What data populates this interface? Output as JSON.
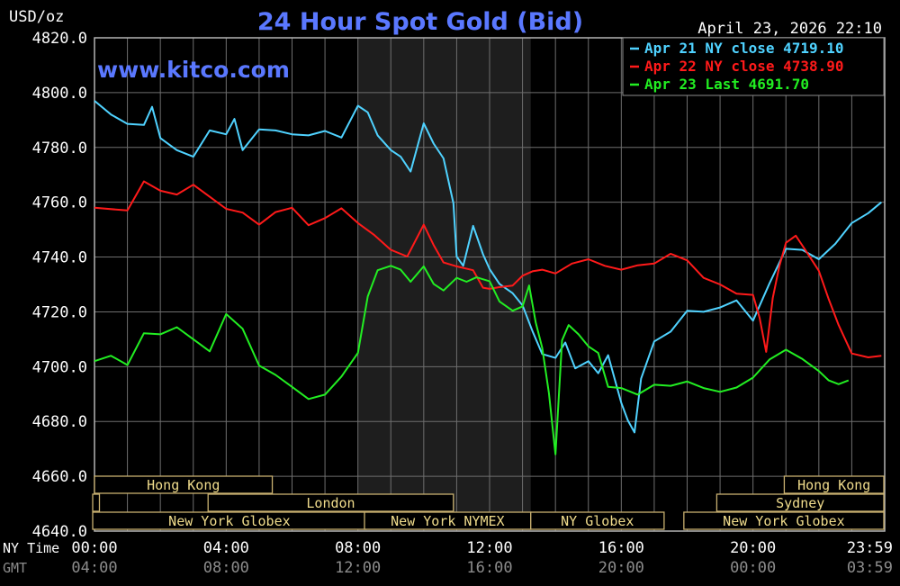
{
  "chart_data": {
    "type": "line",
    "title": "24 Hour Spot Gold (Bid)",
    "watermark": "www.kitco.com",
    "timestamp": "April 23, 2026 22:10",
    "ylabel": "USD/oz",
    "ylim": [
      4640,
      4820
    ],
    "yticks": [
      4820,
      4800,
      4780,
      4760,
      4740,
      4720,
      4700,
      4680,
      4660,
      4640
    ],
    "ytick_labels": [
      "4820.0",
      "4800.0",
      "4780.0",
      "4760.0",
      "4740.0",
      "4720.0",
      "4700.0",
      "4680.0",
      "4660.0",
      "4640.0"
    ],
    "xlim": [
      0,
      24
    ],
    "grid": true,
    "legend_position": "top-right",
    "x_axis_rows": [
      {
        "label": "NY Time",
        "color": "#ffffff",
        "ticks": [
          "00:00",
          "04:00",
          "08:00",
          "12:00",
          "16:00",
          "20:00",
          "23:59"
        ]
      },
      {
        "label": "GMT",
        "color": "#8c8c8c",
        "ticks": [
          "04:00",
          "08:00",
          "12:00",
          "16:00",
          "20:00",
          "00:00",
          "03:59"
        ]
      }
    ],
    "x_tick_positions": [
      0,
      4,
      8,
      12,
      16,
      20,
      23.98
    ],
    "shaded_region": [
      8,
      13.25
    ],
    "series": [
      {
        "name": "Apr 21 NY close 4719.10",
        "color": "#4fd2ff",
        "x": [
          0,
          0.5,
          1,
          1.5,
          1.75,
          2,
          2.5,
          3,
          3.5,
          4,
          4.25,
          4.5,
          5,
          5.5,
          6,
          6.5,
          7,
          7.5,
          8,
          8.3,
          8.6,
          9,
          9.3,
          9.6,
          10,
          10.3,
          10.6,
          10.9,
          11,
          11.2,
          11.5,
          11.8,
          12,
          12.3,
          12.7,
          13,
          13.3,
          13.6,
          14,
          14.3,
          14.6,
          15,
          15.3,
          15.6,
          16,
          16.2,
          16.4,
          16.6,
          17,
          17.5,
          18,
          18.5,
          19,
          19.5,
          20,
          20.5,
          21,
          21.5,
          22,
          22.5,
          23,
          23.5,
          23.9
        ],
        "y": [
          4797,
          4792,
          4789,
          4788,
          4795,
          4783,
          4779,
          4777,
          4786,
          4785,
          4790,
          4779,
          4787,
          4786,
          4785,
          4784,
          4786,
          4784,
          4795,
          4793,
          4784,
          4779,
          4777,
          4771,
          4789,
          4781,
          4776,
          4760,
          4740,
          4737,
          4751,
          4741,
          4736,
          4730,
          4727,
          4722,
          4713,
          4705,
          4703,
          4709,
          4699,
          4702,
          4698,
          4704,
          4687,
          4680,
          4676,
          4696,
          4709,
          4713,
          4720,
          4720,
          4722,
          4724,
          4717,
          4730,
          4743,
          4743,
          4739,
          4745,
          4752,
          4756,
          4760
        ]
      },
      {
        "name": "Apr 22 NY close 4738.90",
        "color": "#ff1a1a",
        "x": [
          0,
          1,
          1.5,
          2,
          2.5,
          3,
          3.5,
          4,
          4.5,
          5,
          5.5,
          6,
          6.5,
          7,
          7.5,
          8,
          8.5,
          9,
          9.5,
          10,
          10.3,
          10.6,
          11,
          11.5,
          11.8,
          12,
          12.3,
          12.7,
          13,
          13.3,
          13.6,
          14,
          14.5,
          15,
          15.5,
          16,
          16.5,
          17,
          17.5,
          18,
          18.5,
          19,
          19.5,
          20,
          20.2,
          20.4,
          20.6,
          20.8,
          21,
          21.3,
          21.6,
          22,
          22.3,
          22.6,
          23,
          23.5,
          23.9
        ],
        "y": [
          4758,
          4757,
          4768,
          4764,
          4763,
          4766,
          4762,
          4758,
          4756,
          4752,
          4756,
          4758,
          4752,
          4754,
          4758,
          4752,
          4748,
          4743,
          4740,
          4752,
          4744,
          4738,
          4737,
          4735,
          4729,
          4728,
          4729,
          4730,
          4733,
          4735,
          4735,
          4734,
          4738,
          4739,
          4737,
          4735,
          4737,
          4738,
          4741,
          4739,
          4732,
          4730,
          4727,
          4726,
          4718,
          4705,
          4725,
          4737,
          4745,
          4748,
          4742,
          4735,
          4725,
          4715,
          4705,
          4703,
          4704
        ]
      },
      {
        "name": "Apr 23 Last 4691.70",
        "color": "#22ee22",
        "x": [
          0,
          0.5,
          1,
          1.5,
          2,
          2.5,
          3,
          3.5,
          4,
          4.5,
          5,
          5.5,
          6,
          6.5,
          7,
          7.5,
          8,
          8.3,
          8.6,
          9,
          9.3,
          9.6,
          10,
          10.3,
          10.6,
          11,
          11.3,
          11.6,
          12,
          12.3,
          12.7,
          13,
          13.2,
          13.4,
          13.6,
          13.8,
          14,
          14.2,
          14.4,
          14.7,
          15,
          15.3,
          15.6,
          16,
          16.5,
          17,
          17.5,
          18,
          18.5,
          19,
          19.5,
          20,
          20.5,
          21,
          21.5,
          22,
          22.3,
          22.6,
          22.9
        ],
        "y": [
          4702,
          4704,
          4701,
          4712,
          4712,
          4714,
          4710,
          4706,
          4719,
          4714,
          4700,
          4697,
          4693,
          4688,
          4690,
          4696,
          4705,
          4726,
          4735,
          4737,
          4735,
          4731,
          4737,
          4730,
          4728,
          4732,
          4731,
          4733,
          4731,
          4724,
          4720,
          4722,
          4730,
          4716,
          4707,
          4690,
          4668,
          4710,
          4715,
          4712,
          4707,
          4705,
          4693,
          4692,
          4690,
          4693,
          4693,
          4695,
          4692,
          4691,
          4692,
          4696,
          4703,
          4706,
          4703,
          4698,
          4695,
          4694,
          4695
        ]
      }
    ],
    "sessions": [
      {
        "label": "Hong Kong",
        "x0": 0,
        "x1": 5.4,
        "row": 0
      },
      {
        "label": "",
        "x0": -0.1,
        "x1": 0.15,
        "row": 1
      },
      {
        "label": "London",
        "x0": 3.45,
        "x1": 10.9,
        "row": 1
      },
      {
        "label": "New York Globex",
        "x0": -0.1,
        "x1": 8.25,
        "row": 2
      },
      {
        "label": "New York NYMEX",
        "x0": 8.2,
        "x1": 13.25,
        "row": 2
      },
      {
        "label": "NY Globex",
        "x0": 13.25,
        "x1": 17.3,
        "row": 2
      },
      {
        "label": "New York Globex",
        "x0": 17.9,
        "x1": 23.99,
        "row": 2
      },
      {
        "label": "Hong Kong",
        "x0": 20.95,
        "x1": 23.99,
        "row": 0
      },
      {
        "label": "Sydney",
        "x0": 18.9,
        "x1": 23.99,
        "row": 1
      }
    ]
  }
}
